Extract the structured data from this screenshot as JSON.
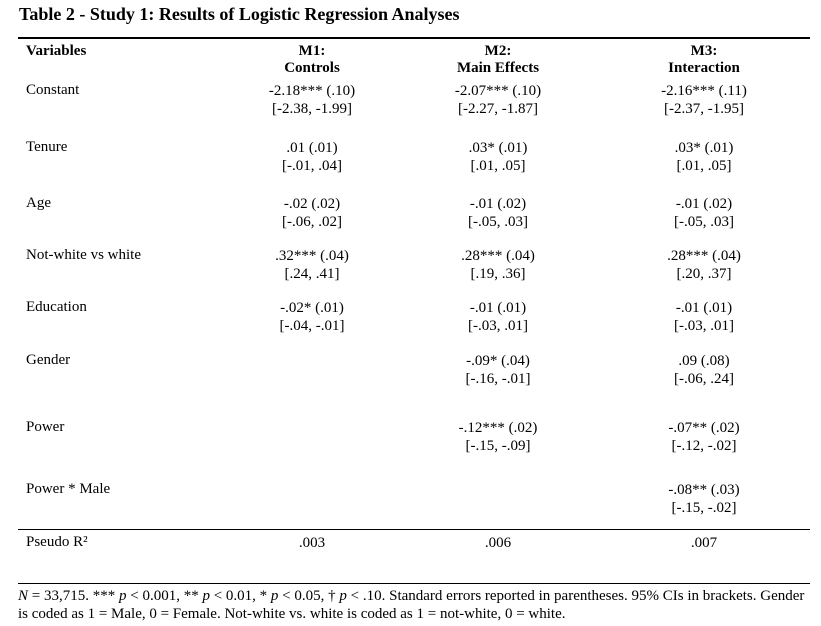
{
  "title": "Table 2 - Study 1: Results of Logistic Regression Analyses",
  "headers": {
    "variables": "Variables",
    "m1": [
      "M1:",
      "Controls"
    ],
    "m2": [
      "M2:",
      "Main Effects"
    ],
    "m3": [
      "M3:",
      "Interaction"
    ]
  },
  "rows": [
    {
      "label": "Constant",
      "m1": [
        "-2.18*** (.10)",
        "[-2.38, -1.99]"
      ],
      "m2": [
        "-2.07*** (.10)",
        "[-2.27, -1.87]"
      ],
      "m3": [
        "-2.16*** (.11)",
        "[-2.37, -1.95]"
      ]
    },
    {
      "label": "Tenure",
      "m1": [
        ".01 (.01)",
        "[-.01, .04]"
      ],
      "m2": [
        ".03* (.01)",
        "[.01, .05]"
      ],
      "m3": [
        ".03* (.01)",
        "[.01, .05]"
      ]
    },
    {
      "label": "Age",
      "m1": [
        "-.02 (.02)",
        "[-.06, .02]"
      ],
      "m2": [
        "-.01 (.02)",
        "[-.05, .03]"
      ],
      "m3": [
        "-.01 (.02)",
        "[-.05, .03]"
      ]
    },
    {
      "label": "Not-white vs white",
      "m1": [
        ".32*** (.04)",
        "[.24, .41]"
      ],
      "m2": [
        ".28*** (.04)",
        "[.19, .36]"
      ],
      "m3": [
        ".28*** (.04)",
        "[.20, .37]"
      ]
    },
    {
      "label": "Education",
      "m1": [
        "-.02* (.01)",
        "[-.04, -.01]"
      ],
      "m2": [
        "-.01 (.01)",
        "[-.03, .01]"
      ],
      "m3": [
        "-.01 (.01)",
        "[-.03, .01]"
      ]
    },
    {
      "label": "Gender",
      "m1": [
        "",
        ""
      ],
      "m2": [
        "-.09* (.04)",
        "[-.16, -.01]"
      ],
      "m3": [
        ".09 (.08)",
        "[-.06, .24]"
      ]
    },
    {
      "label": "Power",
      "m1": [
        "",
        ""
      ],
      "m2": [
        "-.12*** (.02)",
        "[-.15, -.09]"
      ],
      "m3": [
        "-.07** (.02)",
        "[-.12, -.02]"
      ]
    },
    {
      "label": "Power * Male",
      "m1": [
        "",
        ""
      ],
      "m2": [
        "",
        ""
      ],
      "m3": [
        "-.08** (.03)",
        "[-.15, -.02]"
      ]
    }
  ],
  "pseudo": {
    "label": "Pseudo R²",
    "m1": ".003",
    "m2": ".006",
    "m3": ".007"
  },
  "note": {
    "n_label": "N",
    "n_value": " = 33,715. *** ",
    "p1": "p",
    "t1": " < 0.001, ** ",
    "p2": "p",
    "t2": " < 0.01, * ",
    "p3": "p",
    "t3": " < 0.05, † ",
    "p4": "p",
    "t4": " < .10. Standard errors reported in parentheses. 95% CIs in brackets. Gender is coded as 1 = Male, 0 = Female. Not-white vs. white is coded as 1 = not-white, 0 = white."
  }
}
